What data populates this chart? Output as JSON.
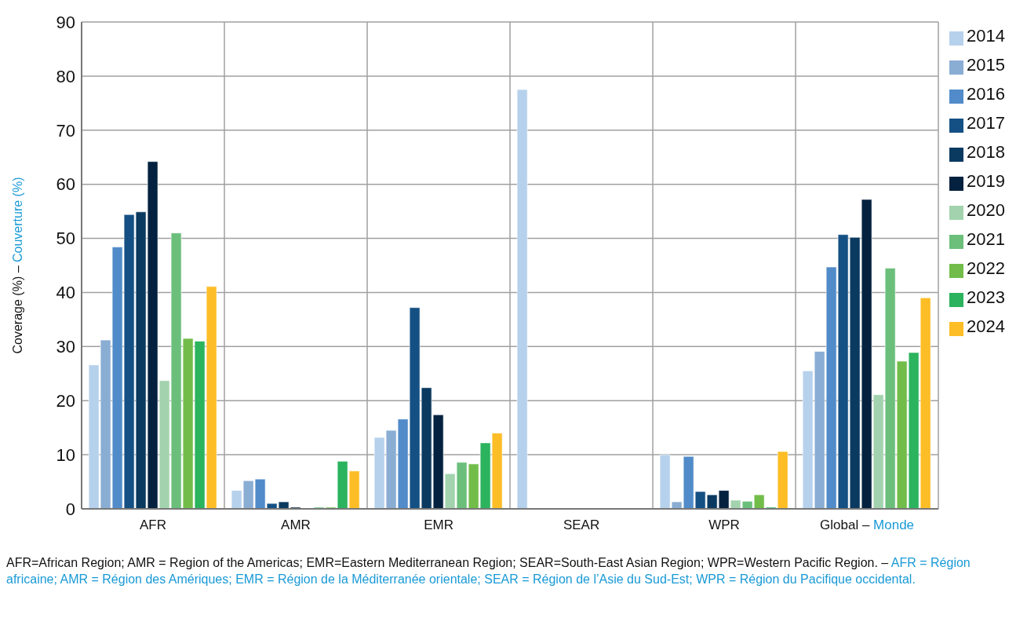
{
  "chart_data": {
    "type": "bar",
    "ylabel": "Coverage (%) – Couverture (%)",
    "categories": [
      "AFR",
      "AMR",
      "EMR",
      "SEAR",
      "WPR",
      "Global – Monde"
    ],
    "series": [
      {
        "name": "2014",
        "color": "#b6d1ec",
        "values": [
          26.6,
          3.4,
          13.2,
          77.5,
          10.0,
          25.5
        ]
      },
      {
        "name": "2015",
        "color": "#8aadd4",
        "values": [
          31.2,
          5.2,
          14.5,
          null,
          1.3,
          29.1
        ]
      },
      {
        "name": "2016",
        "color": "#518bc9",
        "values": [
          48.4,
          5.5,
          16.6,
          null,
          9.7,
          44.7
        ]
      },
      {
        "name": "2017",
        "color": "#155084",
        "values": [
          54.4,
          1.0,
          37.2,
          null,
          3.2,
          50.7
        ]
      },
      {
        "name": "2018",
        "color": "#0a3a60",
        "values": [
          54.9,
          1.3,
          22.4,
          null,
          2.6,
          50.2
        ]
      },
      {
        "name": "2019",
        "color": "#04223f",
        "values": [
          64.2,
          0.3,
          17.4,
          null,
          3.4,
          57.2
        ]
      },
      {
        "name": "2020",
        "color": "#a2d3ae",
        "values": [
          23.7,
          null,
          6.5,
          null,
          1.6,
          21.1
        ]
      },
      {
        "name": "2021",
        "color": "#6bbf7b",
        "values": [
          51.0,
          0.3,
          8.6,
          null,
          1.4,
          44.5
        ]
      },
      {
        "name": "2022",
        "color": "#72bd4a",
        "values": [
          31.5,
          0.3,
          8.3,
          null,
          2.6,
          27.3
        ]
      },
      {
        "name": "2023",
        "color": "#2bb35d",
        "values": [
          31.0,
          8.8,
          12.2,
          null,
          0.3,
          28.9
        ]
      },
      {
        "name": "2024",
        "color": "#fdbd26",
        "values": [
          41.1,
          7.0,
          14.0,
          null,
          10.6,
          39.0
        ]
      }
    ],
    "ylim": [
      0,
      90
    ],
    "yticks": [
      0,
      10,
      20,
      30,
      40,
      50,
      60,
      70,
      80,
      90
    ],
    "grid": true,
    "legend": "right",
    "annotations": [
      "AFR=African Region; AMR = Region of the Americas; EMR=Eastern Mediterranean Region; SEAR=South-East Asian Region; WPR=Western Pacific Region. – AFR = Région africaine; AMR = Région des Amériques; EMR = Région de la Méditerranée orientale; SEAR = Région de l’Asie du Sud-Est; WPR = Région du Pacifique occidental."
    ]
  }
}
